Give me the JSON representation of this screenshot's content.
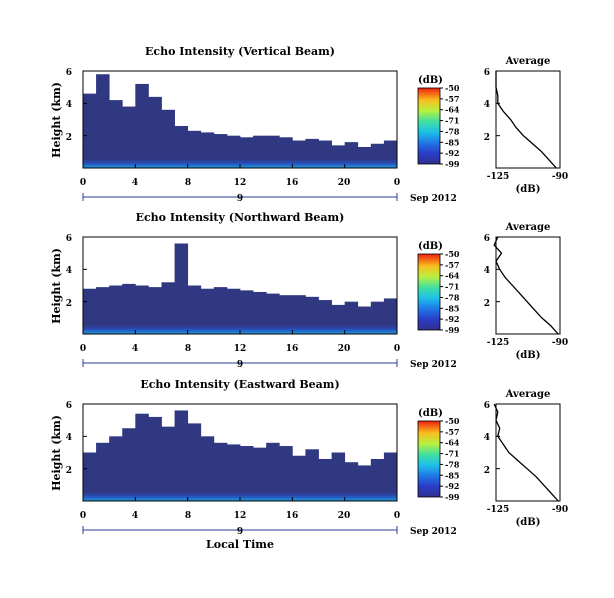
{
  "chart_data": [
    {
      "type": "heatmap",
      "title": "Echo Intensity (Vertical Beam)",
      "ylabel": "Height (km)",
      "yticks": [
        "6",
        "4",
        "2"
      ],
      "ylim": [
        0,
        6
      ],
      "xticks": [
        "0",
        "4",
        "8",
        "12",
        "16",
        "20",
        "0"
      ],
      "xlim": [
        0,
        24
      ],
      "date_marker": "9",
      "date_suffix": "Sep 2012",
      "colorbar": {
        "unit": "(dB)",
        "ticks": [
          "-50",
          "-57",
          "-64",
          "-71",
          "-78",
          "-85",
          "-92",
          "-99"
        ],
        "range": [
          -99,
          -50
        ]
      },
      "cloud_top_km": [
        4.6,
        5.8,
        4.2,
        3.8,
        5.2,
        4.4,
        3.6,
        2.6,
        2.3,
        2.2,
        2.1,
        2.0,
        1.9,
        2.0,
        2.0,
        1.9,
        1.7,
        1.8,
        1.7,
        1.4,
        1.6,
        1.3,
        1.5,
        1.7
      ],
      "average": {
        "title": "Average",
        "xlabel": "(dB)",
        "xticks": [
          "-125",
          "-90"
        ],
        "xlim": [
          -125,
          -90
        ],
        "yticks": [
          "6",
          "4",
          "2"
        ],
        "ylim": [
          0,
          6
        ],
        "height_km": [
          0.0,
          0.5,
          1.0,
          1.5,
          2.0,
          2.5,
          3.0,
          3.5,
          4.0,
          4.5,
          5.0,
          5.5,
          6.0
        ],
        "value_db": [
          -92,
          -96,
          -100,
          -105,
          -110,
          -114,
          -117,
          -121,
          -124,
          -124,
          -125,
          -125,
          -125
        ]
      }
    },
    {
      "type": "heatmap",
      "title": "Echo Intensity (Northward Beam)",
      "ylabel": "Height (km)",
      "yticks": [
        "6",
        "4",
        "2"
      ],
      "ylim": [
        0,
        6
      ],
      "xticks": [
        "0",
        "4",
        "8",
        "12",
        "16",
        "20",
        "0"
      ],
      "xlim": [
        0,
        24
      ],
      "date_marker": "9",
      "date_suffix": "Sep 2012",
      "colorbar": {
        "unit": "(dB)",
        "ticks": [
          "-50",
          "-57",
          "-64",
          "-71",
          "-78",
          "-85",
          "-92",
          "-99"
        ],
        "range": [
          -99,
          -50
        ]
      },
      "cloud_top_km": [
        2.8,
        2.9,
        3.0,
        3.1,
        3.0,
        2.9,
        3.2,
        5.6,
        3.0,
        2.8,
        2.9,
        2.8,
        2.7,
        2.6,
        2.5,
        2.4,
        2.4,
        2.3,
        2.1,
        1.8,
        2.0,
        1.7,
        2.0,
        2.2
      ],
      "average": {
        "title": "Average",
        "xlabel": "(dB)",
        "xticks": [
          "-125",
          "-90"
        ],
        "xlim": [
          -125,
          -90
        ],
        "yticks": [
          "6",
          "4",
          "2"
        ],
        "ylim": [
          0,
          6
        ],
        "height_km": [
          0.0,
          0.5,
          1.0,
          1.5,
          2.0,
          2.5,
          3.0,
          3.5,
          4.0,
          4.5,
          5.0,
          5.5,
          6.0
        ],
        "value_db": [
          -91,
          -95,
          -100,
          -104,
          -108,
          -112,
          -116,
          -120,
          -123,
          -125,
          -122,
          -126,
          -124
        ]
      }
    },
    {
      "type": "heatmap",
      "title": "Echo Intensity (Eastward Beam)",
      "ylabel": "Height (km)",
      "yticks": [
        "6",
        "4",
        "2"
      ],
      "ylim": [
        0,
        6
      ],
      "xticks": [
        "0",
        "4",
        "8",
        "12",
        "16",
        "20",
        "0"
      ],
      "xlim": [
        0,
        24
      ],
      "date_marker": "9",
      "date_suffix": "Sep 2012",
      "xlabel": "Local Time",
      "colorbar": {
        "unit": "(dB)",
        "ticks": [
          "-50",
          "-57",
          "-64",
          "-71",
          "-78",
          "-85",
          "-92",
          "-99"
        ],
        "range": [
          -99,
          -50
        ]
      },
      "cloud_top_km": [
        3.0,
        3.6,
        4.0,
        4.5,
        5.4,
        5.2,
        4.6,
        5.6,
        4.8,
        4.0,
        3.6,
        3.5,
        3.4,
        3.3,
        3.6,
        3.4,
        2.8,
        3.2,
        2.6,
        3.0,
        2.4,
        2.2,
        2.6,
        3.0
      ],
      "average": {
        "title": "Average",
        "xlabel": "(dB)",
        "xticks": [
          "-125",
          "-90"
        ],
        "xlim": [
          -125,
          -90
        ],
        "yticks": [
          "6",
          "4",
          "2"
        ],
        "ylim": [
          0,
          6
        ],
        "height_km": [
          0.0,
          0.5,
          1.0,
          1.5,
          2.0,
          2.5,
          3.0,
          3.5,
          4.0,
          4.5,
          5.0,
          5.5,
          6.0
        ],
        "value_db": [
          -91,
          -95,
          -99,
          -103,
          -108,
          -113,
          -118,
          -121,
          -124,
          -123,
          -125,
          -124,
          -126
        ]
      }
    }
  ]
}
